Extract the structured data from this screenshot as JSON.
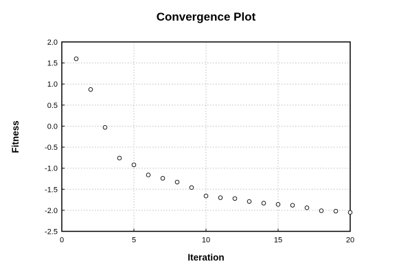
{
  "figure": {
    "title": "Convergence Plot",
    "background_color": "#ffffff",
    "axes_border_color": "#000000",
    "gridline_color": "#bcbcbc",
    "marker_stroke_color": "#1a1a1a",
    "marker_fill_color": "#ffffff"
  },
  "chart_data": {
    "type": "scatter",
    "title": "Convergence Plot",
    "xlabel": "Iteration",
    "ylabel": "Fitness",
    "xlim": [
      0,
      20
    ],
    "ylim": [
      -2.5,
      2.0
    ],
    "xticks": [
      0,
      5,
      10,
      15,
      20
    ],
    "xtick_labels": [
      "0",
      "5",
      "10",
      "15",
      "20"
    ],
    "yticks": [
      2.0,
      1.5,
      1.0,
      0.5,
      0.0,
      -0.5,
      -1.0,
      -1.5,
      -2.0,
      -2.5
    ],
    "ytick_labels": [
      "2.0",
      "1.5",
      "1.0",
      "0.5",
      "0.0",
      "-0.5",
      "-1.0",
      "-1.5",
      "-2.0",
      "-2.5"
    ],
    "grid": true,
    "grid_style": "dotted",
    "legend": false,
    "marker": "open-circle",
    "series": [
      {
        "name": "fitness",
        "x": [
          1,
          2,
          3,
          4,
          5,
          6,
          7,
          8,
          9,
          10,
          11,
          12,
          13,
          14,
          15,
          16,
          17,
          18,
          19,
          20
        ],
        "y": [
          1.6,
          0.87,
          -0.03,
          -0.76,
          -0.92,
          -1.16,
          -1.24,
          -1.33,
          -1.46,
          -1.66,
          -1.7,
          -1.72,
          -1.79,
          -1.83,
          -1.86,
          -1.88,
          -1.94,
          -2.01,
          -2.02,
          -2.05
        ]
      }
    ]
  }
}
